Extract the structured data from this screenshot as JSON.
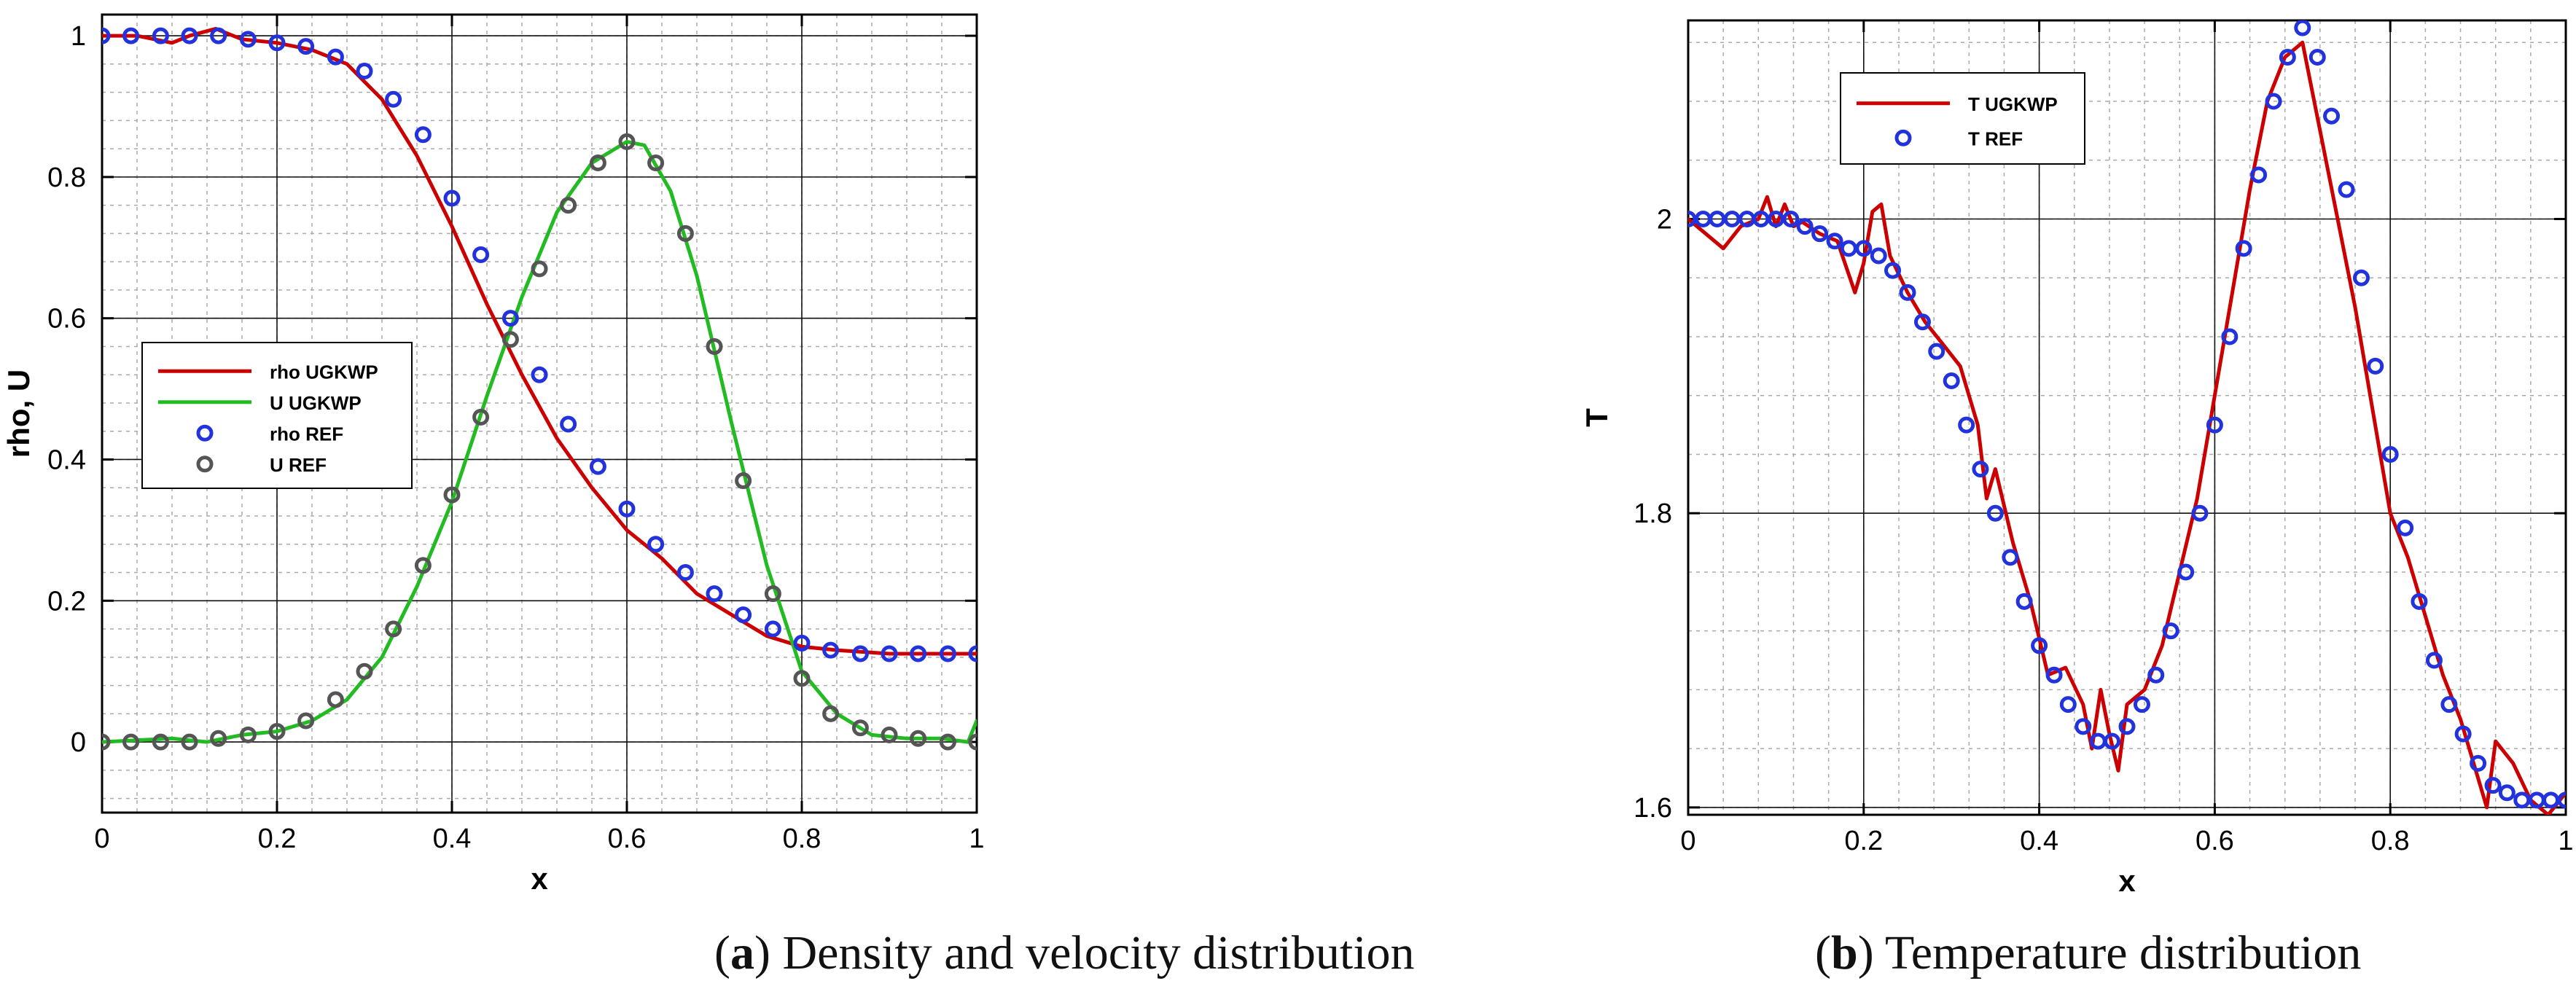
{
  "chart_data": [
    {
      "type": "line",
      "panel": "a",
      "xlabel": "x",
      "ylabel": "rho, U",
      "xlim": [
        0,
        1
      ],
      "ylim": [
        -0.1,
        1.03
      ],
      "xticks": [
        0,
        0.2,
        0.4,
        0.6,
        0.8,
        1
      ],
      "xtick_labels": [
        "0",
        "0.2",
        "0.4",
        "0.6",
        "0.8",
        "1"
      ],
      "yticks": [
        0,
        0.2,
        0.4,
        0.6,
        0.8,
        1
      ],
      "ytick_labels": [
        "0",
        "0.2",
        "0.4",
        "0.6",
        "0.8",
        "1"
      ],
      "grid": true,
      "legend_position": "center-left",
      "series": [
        {
          "name": "rho UGKWP",
          "kind": "line",
          "color": "#cc0000",
          "x": [
            0,
            0.04,
            0.08,
            0.1,
            0.13,
            0.16,
            0.2,
            0.24,
            0.28,
            0.32,
            0.36,
            0.4,
            0.44,
            0.48,
            0.52,
            0.56,
            0.6,
            0.64,
            0.68,
            0.72,
            0.76,
            0.8,
            0.84,
            0.9,
            1
          ],
          "y": [
            1,
            1.0,
            0.99,
            1.0,
            1.01,
            0.995,
            0.99,
            0.98,
            0.96,
            0.91,
            0.83,
            0.73,
            0.62,
            0.52,
            0.43,
            0.36,
            0.3,
            0.26,
            0.21,
            0.18,
            0.15,
            0.135,
            0.13,
            0.125,
            0.125
          ]
        },
        {
          "name": "U    UGKWP",
          "kind": "line",
          "color": "#22bb22",
          "x": [
            0,
            0.08,
            0.12,
            0.16,
            0.2,
            0.24,
            0.28,
            0.32,
            0.36,
            0.4,
            0.44,
            0.48,
            0.52,
            0.56,
            0.6,
            0.62,
            0.65,
            0.68,
            0.72,
            0.76,
            0.8,
            0.84,
            0.88,
            0.92,
            0.96,
            0.99,
            1
          ],
          "y": [
            0,
            0.005,
            0.0,
            0.01,
            0.015,
            0.03,
            0.06,
            0.12,
            0.22,
            0.34,
            0.49,
            0.63,
            0.75,
            0.82,
            0.85,
            0.845,
            0.78,
            0.66,
            0.45,
            0.25,
            0.1,
            0.04,
            0.01,
            0.005,
            0.005,
            0.0,
            0.03
          ]
        },
        {
          "name": "rho REF",
          "kind": "markers",
          "color": "#2233dd",
          "x": [
            0,
            0.033,
            0.067,
            0.1,
            0.133,
            0.167,
            0.2,
            0.233,
            0.267,
            0.3,
            0.333,
            0.367,
            0.4,
            0.433,
            0.467,
            0.5,
            0.533,
            0.567,
            0.6,
            0.633,
            0.667,
            0.7,
            0.733,
            0.767,
            0.8,
            0.833,
            0.867,
            0.9,
            0.933,
            0.967,
            1
          ],
          "y": [
            1,
            1.0,
            1.0,
            1.0,
            1.0,
            0.995,
            0.99,
            0.985,
            0.97,
            0.95,
            0.91,
            0.86,
            0.77,
            0.69,
            0.6,
            0.52,
            0.45,
            0.39,
            0.33,
            0.28,
            0.24,
            0.21,
            0.18,
            0.16,
            0.14,
            0.13,
            0.125,
            0.125,
            0.125,
            0.125,
            0.125
          ]
        },
        {
          "name": "U    REF",
          "kind": "markers",
          "color": "#555555",
          "x": [
            0,
            0.033,
            0.067,
            0.1,
            0.133,
            0.167,
            0.2,
            0.233,
            0.267,
            0.3,
            0.333,
            0.367,
            0.4,
            0.433,
            0.467,
            0.5,
            0.533,
            0.567,
            0.6,
            0.633,
            0.667,
            0.7,
            0.733,
            0.767,
            0.8,
            0.833,
            0.867,
            0.9,
            0.933,
            0.967,
            1
          ],
          "y": [
            0,
            0.0,
            0.0,
            0.0,
            0.005,
            0.01,
            0.015,
            0.03,
            0.06,
            0.1,
            0.16,
            0.25,
            0.35,
            0.46,
            0.57,
            0.67,
            0.76,
            0.82,
            0.85,
            0.82,
            0.72,
            0.56,
            0.37,
            0.21,
            0.09,
            0.04,
            0.02,
            0.01,
            0.005,
            0.0,
            0.0
          ]
        }
      ]
    },
    {
      "type": "line",
      "panel": "b",
      "xlabel": "x",
      "ylabel": "T",
      "xlim": [
        0,
        1
      ],
      "ylim": [
        1.595,
        2.135
      ],
      "xticks": [
        0,
        0.2,
        0.4,
        0.6,
        0.8,
        1
      ],
      "xtick_labels": [
        "0",
        "0.2",
        "0.4",
        "0.6",
        "0.8",
        "1"
      ],
      "yticks": [
        1.6,
        1.8,
        2
      ],
      "ytick_labels": [
        "1.6",
        "1.8",
        "2"
      ],
      "grid": true,
      "legend_position": "top-left",
      "series": [
        {
          "name": "T UGKWP",
          "kind": "line",
          "color": "#cc0000",
          "x": [
            0,
            0.02,
            0.04,
            0.06,
            0.08,
            0.09,
            0.1,
            0.11,
            0.12,
            0.13,
            0.15,
            0.17,
            0.19,
            0.2,
            0.21,
            0.22,
            0.23,
            0.25,
            0.27,
            0.29,
            0.31,
            0.33,
            0.34,
            0.35,
            0.37,
            0.39,
            0.41,
            0.43,
            0.45,
            0.46,
            0.47,
            0.48,
            0.49,
            0.5,
            0.52,
            0.54,
            0.56,
            0.58,
            0.6,
            0.62,
            0.64,
            0.66,
            0.68,
            0.7,
            0.72,
            0.74,
            0.76,
            0.78,
            0.8,
            0.82,
            0.84,
            0.86,
            0.88,
            0.9,
            0.91,
            0.92,
            0.94,
            0.96,
            0.98,
            1
          ],
          "y": [
            2.0,
            1.99,
            1.98,
            1.995,
            2.0,
            2.015,
            1.995,
            2.01,
            1.995,
            1.998,
            1.99,
            1.985,
            1.95,
            1.97,
            2.005,
            2.01,
            1.975,
            1.95,
            1.93,
            1.915,
            1.9,
            1.86,
            1.81,
            1.83,
            1.78,
            1.74,
            1.69,
            1.695,
            1.67,
            1.64,
            1.68,
            1.65,
            1.625,
            1.67,
            1.68,
            1.71,
            1.76,
            1.81,
            1.88,
            1.95,
            2.02,
            2.08,
            2.11,
            2.12,
            2.06,
            2.0,
            1.94,
            1.87,
            1.8,
            1.77,
            1.73,
            1.69,
            1.66,
            1.62,
            1.6,
            1.645,
            1.63,
            1.605,
            1.595,
            1.61
          ]
        },
        {
          "name": "T REF",
          "kind": "markers",
          "color": "#2233dd",
          "x": [
            0,
            0.017,
            0.033,
            0.05,
            0.067,
            0.083,
            0.1,
            0.117,
            0.133,
            0.15,
            0.167,
            0.183,
            0.2,
            0.217,
            0.233,
            0.25,
            0.267,
            0.283,
            0.3,
            0.317,
            0.333,
            0.35,
            0.367,
            0.383,
            0.4,
            0.417,
            0.433,
            0.45,
            0.467,
            0.483,
            0.5,
            0.517,
            0.533,
            0.55,
            0.567,
            0.583,
            0.6,
            0.617,
            0.633,
            0.65,
            0.667,
            0.683,
            0.7,
            0.717,
            0.733,
            0.75,
            0.767,
            0.783,
            0.8,
            0.817,
            0.833,
            0.85,
            0.867,
            0.883,
            0.9,
            0.917,
            0.933,
            0.95,
            0.967,
            0.983,
            1
          ],
          "y": [
            2.0,
            2.0,
            2.0,
            2.0,
            2.0,
            2.0,
            2.0,
            2.0,
            1.995,
            1.99,
            1.985,
            1.98,
            1.98,
            1.975,
            1.965,
            1.95,
            1.93,
            1.91,
            1.89,
            1.86,
            1.83,
            1.8,
            1.77,
            1.74,
            1.71,
            1.69,
            1.67,
            1.655,
            1.645,
            1.645,
            1.655,
            1.67,
            1.69,
            1.72,
            1.76,
            1.8,
            1.86,
            1.92,
            1.98,
            2.03,
            2.08,
            2.11,
            2.13,
            2.11,
            2.07,
            2.02,
            1.96,
            1.9,
            1.84,
            1.79,
            1.74,
            1.7,
            1.67,
            1.65,
            1.63,
            1.615,
            1.61,
            1.605,
            1.605,
            1.605,
            1.605
          ]
        }
      ]
    }
  ],
  "captions": [
    {
      "label": "(a)",
      "letter": "a",
      "text": "Density and velocity distribution"
    },
    {
      "label": "(b)",
      "letter": "b",
      "text": "Temperature distribution"
    }
  ],
  "colors": {
    "grid_major": "#111111",
    "grid_minor": "#aaaaaa",
    "axis": "#000000"
  }
}
